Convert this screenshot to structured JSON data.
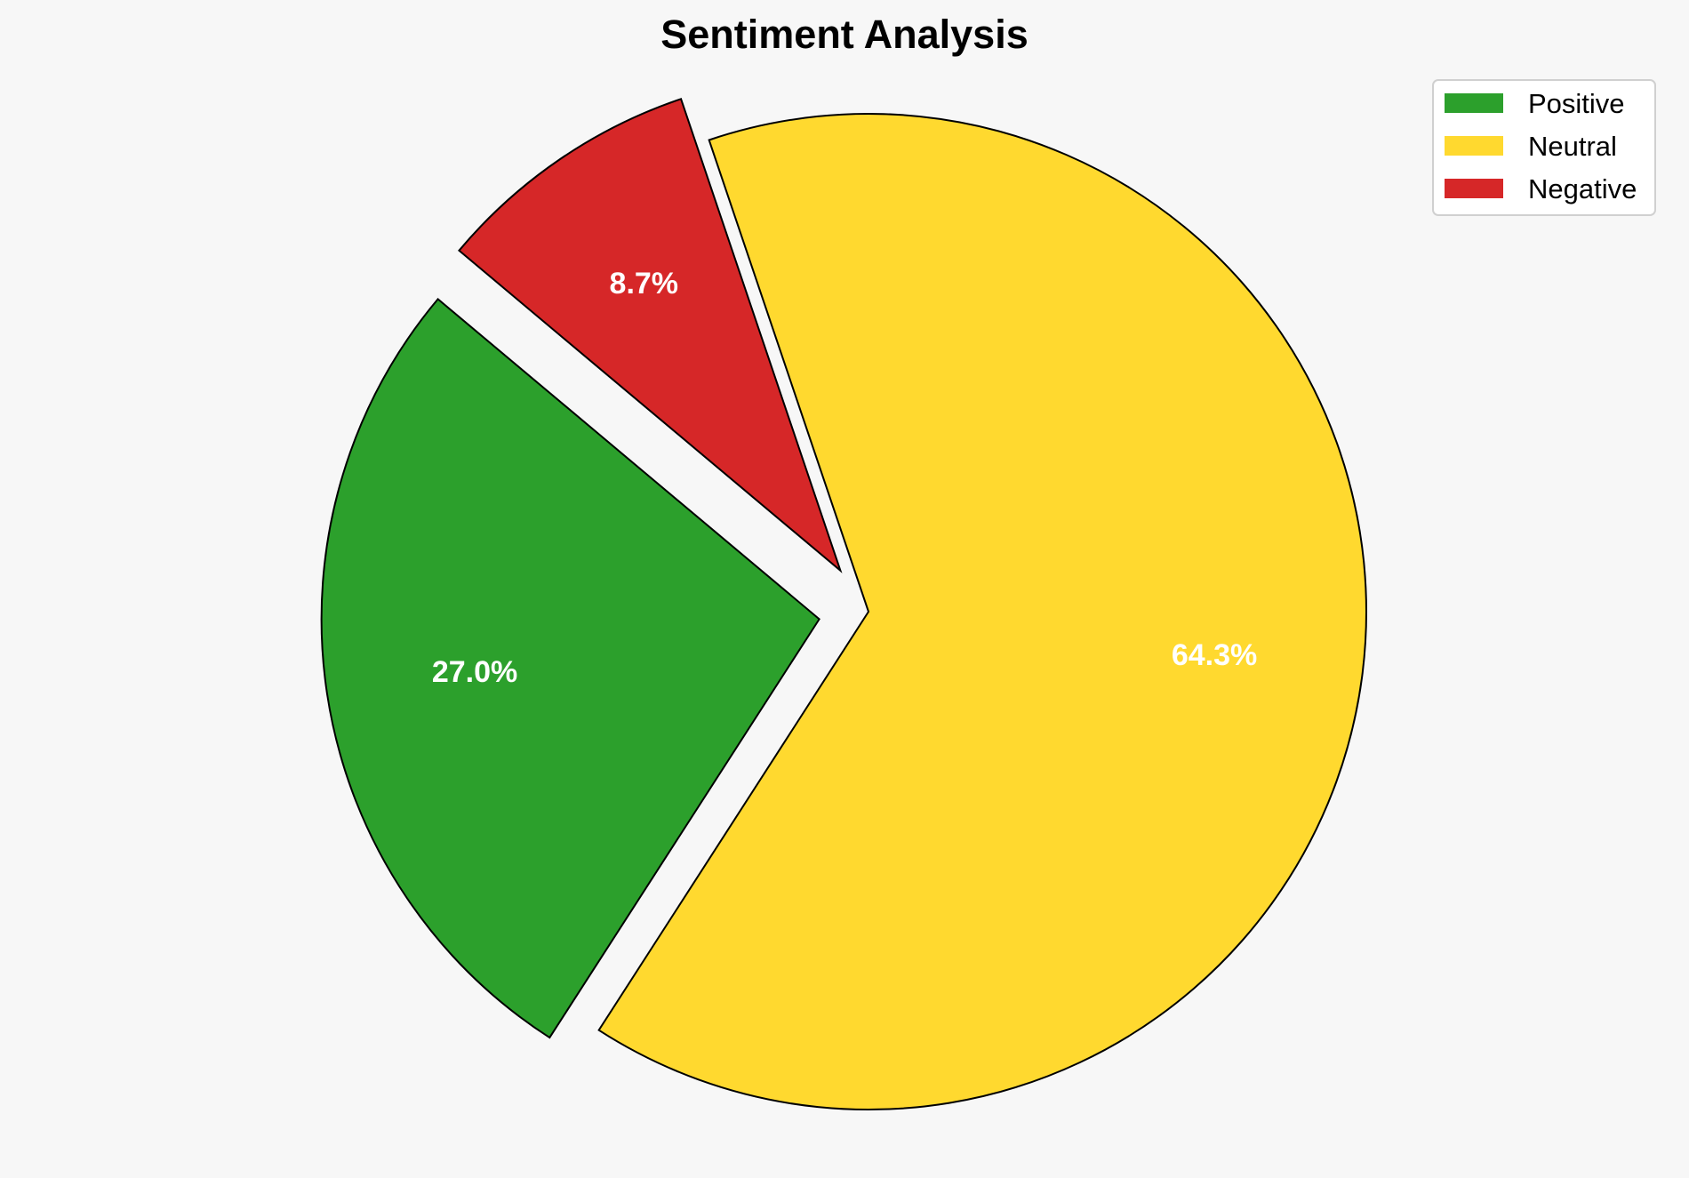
{
  "chart_data": {
    "type": "pie",
    "title": "Sentiment Analysis",
    "categories": [
      "Positive",
      "Neutral",
      "Negative"
    ],
    "values": [
      27.0,
      64.3,
      8.7
    ],
    "labels": [
      "27.0%",
      "64.3%",
      "8.7%"
    ],
    "colors": [
      "#2ca02c",
      "#ffd92f",
      "#d62728"
    ],
    "explode": [
      0.1,
      0,
      0.1
    ],
    "start_angle": 140,
    "legend_position": "top-right"
  }
}
